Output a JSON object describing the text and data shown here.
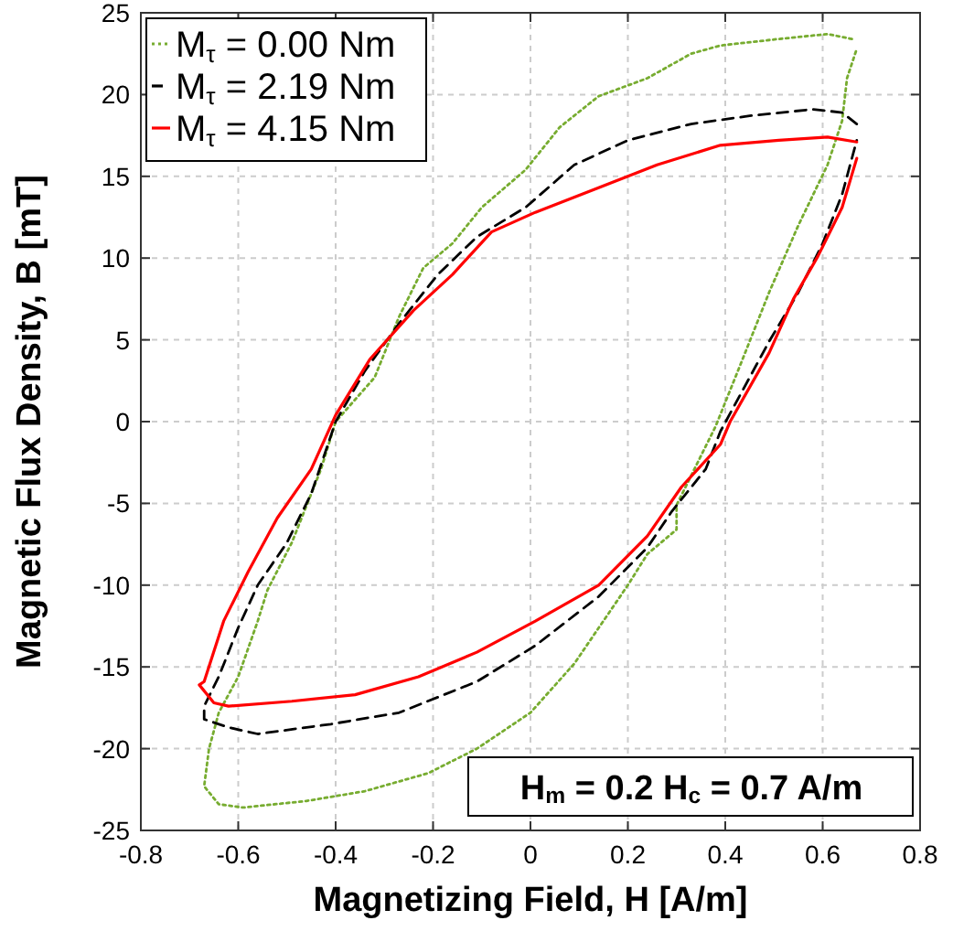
{
  "chart_data": {
    "type": "line",
    "xlabel": "Magnetizing Field, H [A/m]",
    "ylabel": "Magnetic Flux Density, B [mT]",
    "xlim": [
      -0.8,
      0.8
    ],
    "xticks": [
      -0.8,
      -0.6,
      -0.4,
      -0.2,
      0,
      0.2,
      0.4,
      0.6,
      0.8
    ],
    "ylim": [
      -25,
      25
    ],
    "yticks": [
      -25,
      -20,
      -15,
      -10,
      -5,
      0,
      5,
      10,
      15,
      20,
      25
    ],
    "grid": true,
    "legend": "top left",
    "marker": "none",
    "annotations": [
      "H$_{m}$ = 0.2 H$_{c}$ = 0.7 A/m"
    ],
    "series": [
      {
        "name": "M$_{τ}$ = 0.00 Nm",
        "color": "#77ac30",
        "line_style": "dotted",
        "x": [
          0.66,
          0.61,
          0.51,
          0.39,
          0.33,
          0.24,
          0.14,
          0.06,
          -0.01,
          -0.1,
          -0.16,
          -0.22,
          -0.27,
          -0.32,
          -0.4,
          -0.43,
          -0.49,
          -0.54,
          -0.56,
          -0.6,
          -0.64,
          -0.66,
          -0.67,
          -0.64,
          -0.59,
          -0.46,
          -0.34,
          -0.21,
          -0.11,
          0,
          0.09,
          0.2,
          0.24,
          0.3,
          0.3,
          0.35,
          0.38,
          0.43,
          0.49,
          0.55,
          0.61,
          0.64,
          0.65,
          0.67
        ],
        "values": [
          23.4,
          23.7,
          23.4,
          23,
          22.5,
          21,
          19.9,
          18,
          15.4,
          13.1,
          10.9,
          9.4,
          6.4,
          2.7,
          0,
          -2.9,
          -7.4,
          -10.3,
          -12.2,
          -15.6,
          -17.8,
          -20,
          -22.3,
          -23.4,
          -23.6,
          -23.2,
          -22.6,
          -21.5,
          -20,
          -17.8,
          -14.8,
          -10,
          -8.1,
          -6.6,
          -5.1,
          -2.1,
          -0.3,
          3.4,
          7.9,
          12,
          15.7,
          18.4,
          21,
          22.8
        ]
      },
      {
        "name": "M$_{τ}$ = 2.19 Nm",
        "color": "#000000",
        "line_style": "dashed",
        "x": [
          0.67,
          0.64,
          0.58,
          0.45,
          0.33,
          0.2,
          0.09,
          -0.01,
          -0.11,
          -0.19,
          -0.27,
          -0.34,
          -0.4,
          -0.45,
          -0.5,
          -0.56,
          -0.6,
          -0.64,
          -0.67,
          -0.67,
          -0.62,
          -0.56,
          -0.41,
          -0.27,
          -0.11,
          0.01,
          0.14,
          0.24,
          0.29,
          0.36,
          0.39,
          0.43,
          0.49,
          0.55,
          0.6,
          0.64,
          0.67
        ],
        "values": [
          18.2,
          18.9,
          19.1,
          18.7,
          18.2,
          17.2,
          15.7,
          13.1,
          11.3,
          9,
          6,
          3.1,
          0,
          -4.4,
          -7.4,
          -10,
          -12.6,
          -15.6,
          -17.4,
          -18.2,
          -18.7,
          -19.1,
          -18.5,
          -17.8,
          -15.9,
          -13.7,
          -10.7,
          -7.7,
          -5.5,
          -2.9,
          -0.6,
          1.6,
          4.9,
          7.9,
          10.9,
          13.9,
          17.2
        ]
      },
      {
        "name": "M$_{τ}$ = 4.15 Nm",
        "color": "#ff0000",
        "line_style": "solid",
        "x": [
          0.67,
          0.61,
          0.51,
          0.39,
          0.26,
          0.14,
          0.01,
          -0.08,
          -0.16,
          -0.24,
          -0.33,
          -0.4,
          -0.45,
          -0.52,
          -0.58,
          -0.63,
          -0.67,
          -0.68,
          -0.65,
          -0.62,
          -0.49,
          -0.36,
          -0.23,
          -0.11,
          0.01,
          0.14,
          0.24,
          0.31,
          0.39,
          0.41,
          0.49,
          0.54,
          0.59,
          0.64,
          0.67
        ],
        "values": [
          17.1,
          17.4,
          17.2,
          16.9,
          15.7,
          14.3,
          12.8,
          11.6,
          9,
          6.8,
          3.8,
          0.4,
          -2.9,
          -5.9,
          -9.2,
          -12.2,
          -15.9,
          -16.1,
          -17.2,
          -17.4,
          -17.1,
          -16.7,
          -15.6,
          -14.1,
          -12.2,
          -10,
          -7,
          -4,
          -1.4,
          0,
          4.2,
          7.5,
          10.1,
          13.1,
          16.1
        ]
      }
    ]
  }
}
